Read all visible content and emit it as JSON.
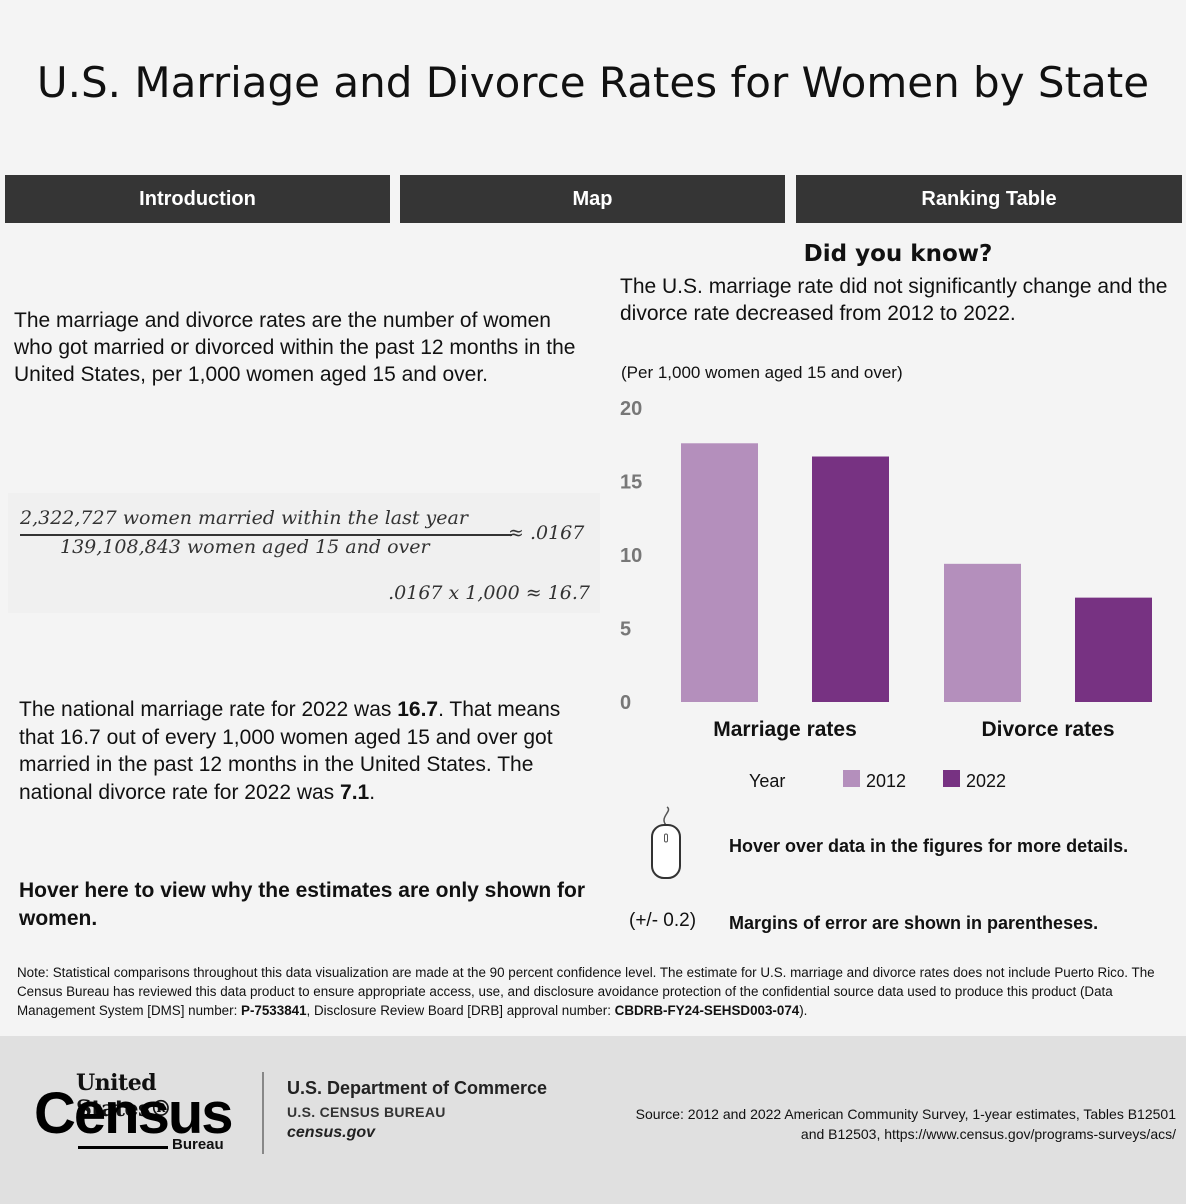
{
  "title": "U.S. Marriage and Divorce Rates for Women by State",
  "tabs": [
    {
      "label": "Introduction"
    },
    {
      "label": "Map"
    },
    {
      "label": "Ranking Table"
    }
  ],
  "intro": {
    "definition": "The marriage and divorce rates are the number of women who got married or divorced within the past 12 months in the United States, per 1,000 women aged 15 and over.",
    "formula": {
      "numerator": "2,322,727 women married within the last year",
      "denominator": "139,108,843 women aged 15 and over",
      "result": "≈ .0167",
      "calculation": ".0167 x 1,000 ≈ 16.7"
    },
    "national_pre": "The national marriage rate for 2022 was ",
    "national_marriage": "16.7",
    "national_mid": ". That means that 16.7 out of every 1,000 women aged 15 and over got married in the past 12 months in the United States. The national divorce rate for 2022 was ",
    "national_divorce": "7.1",
    "national_post": ".",
    "hover_why": "Hover here to view why the estimates are only shown for women."
  },
  "did_you_know": {
    "title": "Did you know?",
    "text": "The U.S. marriage rate did not significantly change and the divorce rate decreased from 2012 to 2022."
  },
  "chart_data": {
    "type": "bar",
    "title": "",
    "subtitle": "(Per 1,000 women aged 15 and over)",
    "categories": [
      "Marriage rates",
      "Divorce rates"
    ],
    "series": [
      {
        "name": "2012",
        "values": [
          17.6,
          9.4
        ],
        "color": "#b48fbc"
      },
      {
        "name": "2022",
        "values": [
          16.7,
          7.1
        ],
        "color": "#773282"
      }
    ],
    "ylim": [
      0,
      20
    ],
    "yticks": [
      0,
      5,
      10,
      15,
      20
    ],
    "legend_title": "Year",
    "legend_position": "bottom",
    "grid": false
  },
  "hints": {
    "hover_note": "Hover over data in the figures for more details.",
    "moe_sample": "(+/- 0.2)",
    "moe_note": "Margins of error are shown in parentheses."
  },
  "note": {
    "text1": "Note: Statistical comparisons throughout this data visualization are made at the 90 percent confidence level. The estimate for U.S. marriage and divorce rates does not include Puerto Rico. The Census Bureau has reviewed this data product to ensure appropriate access, use, and disclosure avoidance protection of the confidential source data used to produce this product (Data Management System [DMS] number: ",
    "dms": "P-7533841",
    "text2": ", Disclosure Review Board [DRB] approval number: ",
    "drb": "CBDRB-FY24-SEHSD003-074",
    "text3": ")."
  },
  "footer": {
    "logo_top": "United States®",
    "logo_main": "Census",
    "logo_bottom": "Bureau",
    "department": "U.S. Department of Commerce",
    "bureau": "U.S. CENSUS BUREAU",
    "website": "census.gov",
    "source": "Source: 2012 and 2022 American Community Survey, 1-year estimates, Tables B12501 and B12503, https://www.census.gov/programs-surveys/acs/"
  }
}
